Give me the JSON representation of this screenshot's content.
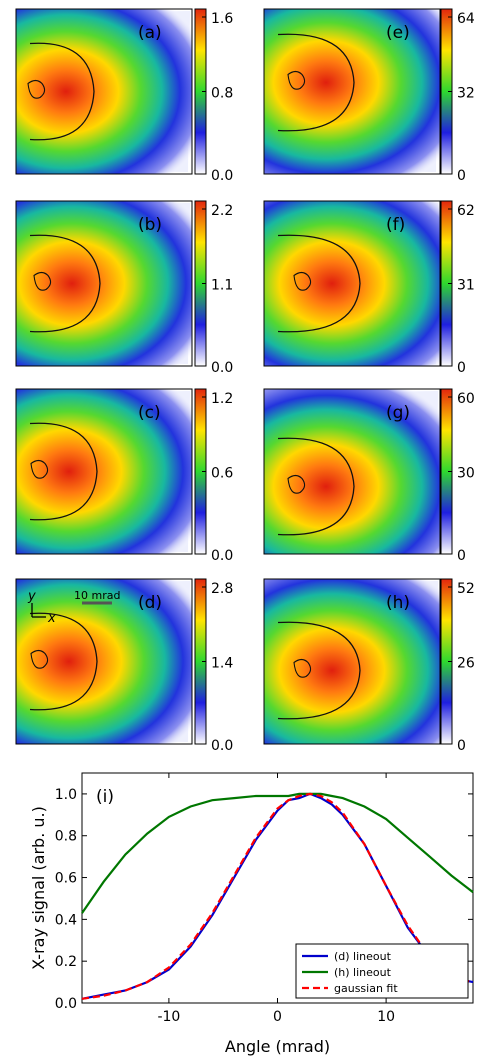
{
  "chart_data": [
    {
      "type": "heatmap",
      "panel": "a",
      "label": "(a)",
      "colorbar_ticks": [
        "1.6",
        "0.8",
        "0.0"
      ],
      "colorbar_range": [
        0,
        1.85
      ],
      "colormap": [
        "#ffffff",
        "#1f1fe0",
        "#2ed82e",
        "#ffe400",
        "#e3260d"
      ],
      "hotspot": {
        "x_mrad": -18,
        "y_mrad": 0
      },
      "scale_bar": null,
      "axes_indicator": null
    },
    {
      "type": "heatmap",
      "panel": "b",
      "label": "(b)",
      "colorbar_ticks": [
        "2.2",
        "1.1",
        "0.0"
      ],
      "colorbar_range": [
        0,
        2.3
      ],
      "colormap": [
        "#ffffff",
        "#1f1fe0",
        "#2ed82e",
        "#ffe400",
        "#e3260d"
      ],
      "hotspot": {
        "x_mrad": -16,
        "y_mrad": 0
      },
      "scale_bar": null,
      "axes_indicator": null
    },
    {
      "type": "heatmap",
      "panel": "c",
      "label": "(c)",
      "colorbar_ticks": [
        "1.2",
        "0.6",
        "0.0"
      ],
      "colorbar_range": [
        0,
        1.3
      ],
      "colormap": [
        "#ffffff",
        "#1f1fe0",
        "#2ed82e",
        "#ffe400",
        "#e3260d"
      ],
      "hotspot": {
        "x_mrad": -17,
        "y_mrad": 0
      },
      "scale_bar": null,
      "axes_indicator": null
    },
    {
      "type": "heatmap",
      "panel": "d",
      "label": "(d)",
      "colorbar_ticks": [
        "2.8",
        "1.4",
        "0.0"
      ],
      "colorbar_range": [
        0,
        2.9
      ],
      "colormap": [
        "#ffffff",
        "#1f1fe0",
        "#2ed82e",
        "#ffe400",
        "#e3260d"
      ],
      "hotspot": {
        "x_mrad": -17,
        "y_mrad": 0
      },
      "scale_bar": {
        "label": "10 mrad"
      },
      "axes_indicator": {
        "x": "x",
        "y": "y"
      }
    },
    {
      "type": "heatmap",
      "panel": "e",
      "label": "(e)",
      "colorbar_ticks": [
        "64",
        "32",
        "0"
      ],
      "colorbar_range": [
        0,
        64
      ],
      "colormap": [
        "#ffffff",
        "#1f1fe0",
        "#2ed82e",
        "#ffe400",
        "#e3260d"
      ],
      "hotspot": {
        "x_mrad": -14,
        "y_mrad": 3
      },
      "scale_bar": null,
      "axes_indicator": null
    },
    {
      "type": "heatmap",
      "panel": "f",
      "label": "(f)",
      "colorbar_ticks": [
        "62",
        "31",
        "0"
      ],
      "colorbar_range": [
        0,
        62
      ],
      "colormap": [
        "#ffffff",
        "#1f1fe0",
        "#2ed82e",
        "#ffe400",
        "#e3260d"
      ],
      "hotspot": {
        "x_mrad": -12,
        "y_mrad": 0
      },
      "scale_bar": null,
      "axes_indicator": null
    },
    {
      "type": "heatmap",
      "panel": "g",
      "label": "(g)",
      "colorbar_ticks": [
        "60",
        "30",
        "0"
      ],
      "colorbar_range": [
        0,
        60
      ],
      "colormap": [
        "#ffffff",
        "#1f1fe0",
        "#2ed82e",
        "#ffe400",
        "#e3260d"
      ],
      "hotspot": {
        "x_mrad": -14,
        "y_mrad": -5
      },
      "scale_bar": null,
      "axes_indicator": null
    },
    {
      "type": "heatmap",
      "panel": "h",
      "label": "(h)",
      "colorbar_ticks": [
        "52",
        "26",
        "0"
      ],
      "colorbar_range": [
        0,
        52
      ],
      "colormap": [
        "#ffffff",
        "#1f1fe0",
        "#2ed82e",
        "#ffe400",
        "#e3260d"
      ],
      "hotspot": {
        "x_mrad": -12,
        "y_mrad": -3
      },
      "scale_bar": null,
      "axes_indicator": null
    },
    {
      "type": "line",
      "panel": "i",
      "label": "(i)",
      "xlabel": "Angle (mrad)",
      "ylabel": "X-ray signal (arb. u.)",
      "xlim": [
        -18,
        18
      ],
      "ylim": [
        0.0,
        1.1
      ],
      "xticks": [
        -10,
        0,
        10
      ],
      "xtick_labels": [
        "-10",
        "0",
        "10"
      ],
      "yticks": [
        0.0,
        0.2,
        0.4,
        0.6,
        0.8,
        1.0
      ],
      "ytick_labels": [
        "0.0",
        "0.2",
        "0.4",
        "0.6",
        "0.8",
        "1.0"
      ],
      "grid": false,
      "legend_position": "lower-right",
      "x": [
        -18,
        -16,
        -14,
        -12,
        -10,
        -8,
        -6,
        -4,
        -2,
        0,
        1,
        2,
        3,
        4,
        5,
        6,
        8,
        10,
        12,
        14,
        16,
        18
      ],
      "series": [
        {
          "name": "(d) lineout",
          "color": "#0000cc",
          "style": "solid",
          "values": [
            0.02,
            0.04,
            0.06,
            0.1,
            0.16,
            0.27,
            0.42,
            0.6,
            0.78,
            0.92,
            0.97,
            0.98,
            1.0,
            0.98,
            0.95,
            0.9,
            0.76,
            0.56,
            0.36,
            0.22,
            0.12,
            0.1
          ]
        },
        {
          "name": "(h) lineout",
          "color": "#007700",
          "style": "solid",
          "values": [
            0.43,
            0.58,
            0.71,
            0.81,
            0.89,
            0.94,
            0.97,
            0.98,
            0.99,
            0.99,
            0.99,
            1.0,
            1.0,
            1.0,
            0.99,
            0.98,
            0.94,
            0.88,
            0.79,
            0.7,
            0.61,
            0.53
          ]
        },
        {
          "name": "gaussian fit",
          "color": "#ff0000",
          "style": "dashed",
          "values": [
            0.02,
            0.035,
            0.06,
            0.1,
            0.17,
            0.28,
            0.43,
            0.61,
            0.79,
            0.93,
            0.97,
            0.99,
            1.0,
            0.99,
            0.96,
            0.91,
            0.76,
            0.56,
            0.37,
            0.22,
            0.12,
            0.1
          ]
        }
      ]
    }
  ]
}
